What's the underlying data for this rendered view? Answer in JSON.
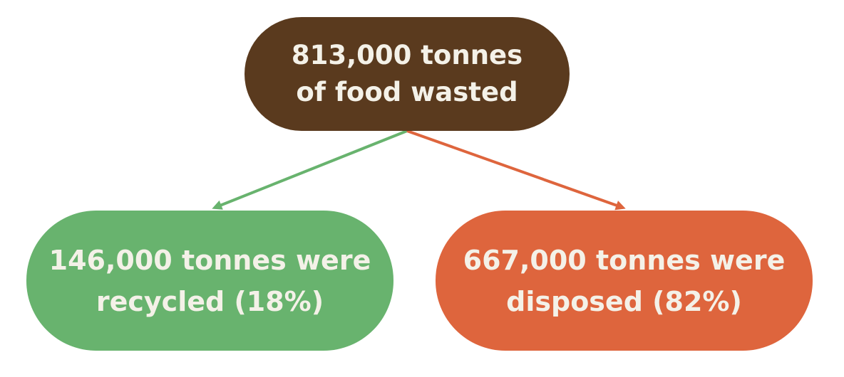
{
  "diagram": {
    "root": {
      "lines": [
        "813,000 tonnes",
        "of food wasted"
      ],
      "color": "#5a3a1e"
    },
    "children": [
      {
        "lines": [
          "146,000 tonnes were",
          "recycled (18%)"
        ],
        "color": "#68b36e"
      },
      {
        "lines": [
          "667,000 tonnes were",
          "disposed (82%)"
        ],
        "color": "#de653d"
      }
    ],
    "edges": [
      {
        "from": "root",
        "to": "children.0",
        "color": "#68b36e"
      },
      {
        "from": "root",
        "to": "children.1",
        "color": "#de653d"
      }
    ]
  }
}
